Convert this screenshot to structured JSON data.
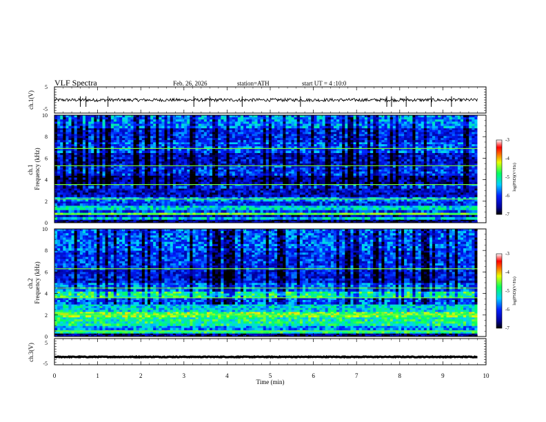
{
  "header": {
    "title": "VLF Spectra",
    "date": "Feb. 26, 2026",
    "station": "station=ATH",
    "start": "start UT =  4 :10:0"
  },
  "chart_data": [
    {
      "type": "line",
      "ylabel": "ch.1(V)",
      "ylim": [
        -5,
        5
      ],
      "yticks": [
        "5",
        "-5"
      ],
      "baseline": 0,
      "noise_amplitude": 0.6,
      "spikes": [
        0.6,
        0.73,
        1.24,
        3.23,
        3.6,
        4.35,
        5.7,
        7.7,
        7.81,
        8.15,
        8.73,
        9.2
      ]
    },
    {
      "type": "heatmap",
      "ylabel": "ch.1\nFrequency (kHz)",
      "ylim": [
        0,
        10
      ],
      "yticks": [
        "0",
        "2",
        "4",
        "6",
        "8",
        "10"
      ],
      "colorbar": {
        "label": "log(PSD)(V²/Hz)",
        "ticks": [
          "-3",
          "-4",
          "-5",
          "-6",
          "-7"
        ],
        "range": [
          -7,
          -3
        ]
      },
      "bands": [
        {
          "f": [
            0.0,
            0.3
          ],
          "v": -6.7
        },
        {
          "f": [
            0.3,
            0.55
          ],
          "v": -5.4
        },
        {
          "f": [
            0.55,
            0.75
          ],
          "v": -6.4
        },
        {
          "f": [
            0.75,
            0.95
          ],
          "v": -4.6
        },
        {
          "f": [
            0.95,
            1.2
          ],
          "v": -6.0
        },
        {
          "f": [
            1.2,
            1.6
          ],
          "v": -5.3
        },
        {
          "f": [
            1.6,
            2.0
          ],
          "v": -6.1
        },
        {
          "f": [
            2.0,
            2.4
          ],
          "v": -5.6
        },
        {
          "f": [
            2.4,
            3.2
          ],
          "v": -6.4
        },
        {
          "f": [
            3.2,
            3.6
          ],
          "v": -6.0
        },
        {
          "f": [
            3.6,
            4.4
          ],
          "v": -6.5
        },
        {
          "f": [
            4.4,
            5.3
          ],
          "v": -6.0
        },
        {
          "f": [
            5.3,
            6.5
          ],
          "v": -6.3
        },
        {
          "f": [
            6.5,
            7.5
          ],
          "v": -5.8
        },
        {
          "f": [
            7.5,
            8.8
          ],
          "v": -6.1
        },
        {
          "f": [
            8.8,
            10.0
          ],
          "v": -5.6
        }
      ],
      "lines_khz": [
        0.8,
        2.2,
        3.55,
        5.3,
        6.9
      ]
    },
    {
      "type": "heatmap",
      "ylabel": "ch.2\nFrequency (kHz)",
      "ylim": [
        0,
        10
      ],
      "yticks": [
        "0",
        "2",
        "4",
        "6",
        "8",
        "10"
      ],
      "colorbar": {
        "label": "log(PSD)(V²/Hz)",
        "ticks": [
          "-3",
          "-4",
          "-5",
          "-6",
          "-7"
        ],
        "range": [
          -7,
          -3
        ]
      },
      "bands": [
        {
          "f": [
            0.0,
            0.3
          ],
          "v": -6.6
        },
        {
          "f": [
            0.3,
            0.6
          ],
          "v": -5.0
        },
        {
          "f": [
            0.6,
            1.0
          ],
          "v": -5.6
        },
        {
          "f": [
            1.0,
            1.8
          ],
          "v": -5.0
        },
        {
          "f": [
            1.8,
            2.3
          ],
          "v": -4.6
        },
        {
          "f": [
            2.3,
            3.0
          ],
          "v": -5.3
        },
        {
          "f": [
            3.0,
            3.6
          ],
          "v": -5.8
        },
        {
          "f": [
            3.6,
            4.2
          ],
          "v": -4.9
        },
        {
          "f": [
            4.2,
            5.0
          ],
          "v": -5.7
        },
        {
          "f": [
            5.0,
            6.2
          ],
          "v": -6.2
        },
        {
          "f": [
            6.2,
            8.0
          ],
          "v": -6.0
        },
        {
          "f": [
            8.0,
            10.0
          ],
          "v": -5.8
        }
      ],
      "lines_khz": [
        0.5,
        2.0,
        3.6,
        4.5,
        6.3
      ]
    },
    {
      "type": "line",
      "ylabel": "ch.3(V)",
      "ylim": [
        -5,
        5
      ],
      "yticks": [
        "5",
        "-5"
      ],
      "baseline": -2,
      "noise_amplitude": 0.15,
      "spikes": []
    }
  ],
  "xaxis": {
    "label": "Time (min)",
    "range": [
      0,
      10
    ],
    "ticks": [
      "0",
      "1",
      "2",
      "3",
      "4",
      "5",
      "6",
      "7",
      "8",
      "9",
      "10"
    ],
    "data_end": 9.8
  }
}
